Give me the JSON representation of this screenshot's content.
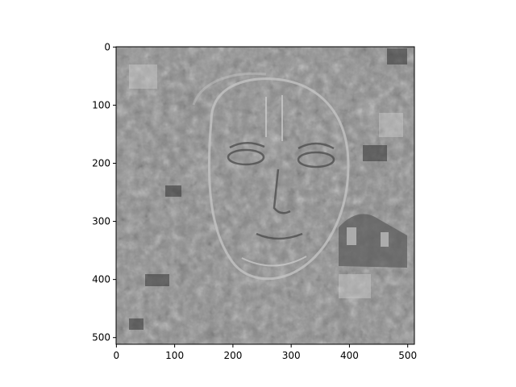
{
  "chart_data": {
    "type": "heatmap",
    "title": "",
    "xlabel": "",
    "ylabel": "",
    "xlim": [
      0,
      511
    ],
    "ylim": [
      511,
      0
    ],
    "colormap": "gray",
    "xticks": [
      0,
      100,
      200,
      300,
      400,
      500
    ],
    "yticks": [
      0,
      100,
      200,
      300,
      400,
      500
    ],
    "xtick_labels": [
      "0",
      "100",
      "200",
      "300",
      "400",
      "500"
    ],
    "ytick_labels": [
      "0",
      "100",
      "200",
      "300",
      "400",
      "500"
    ],
    "grid": false,
    "image_content": "grayscale edge-filtered photo of a face surrounded by textured background"
  },
  "colors": {
    "background": "#ffffff",
    "image_mid_gray": "#8c8c8c",
    "axis": "#000000"
  }
}
